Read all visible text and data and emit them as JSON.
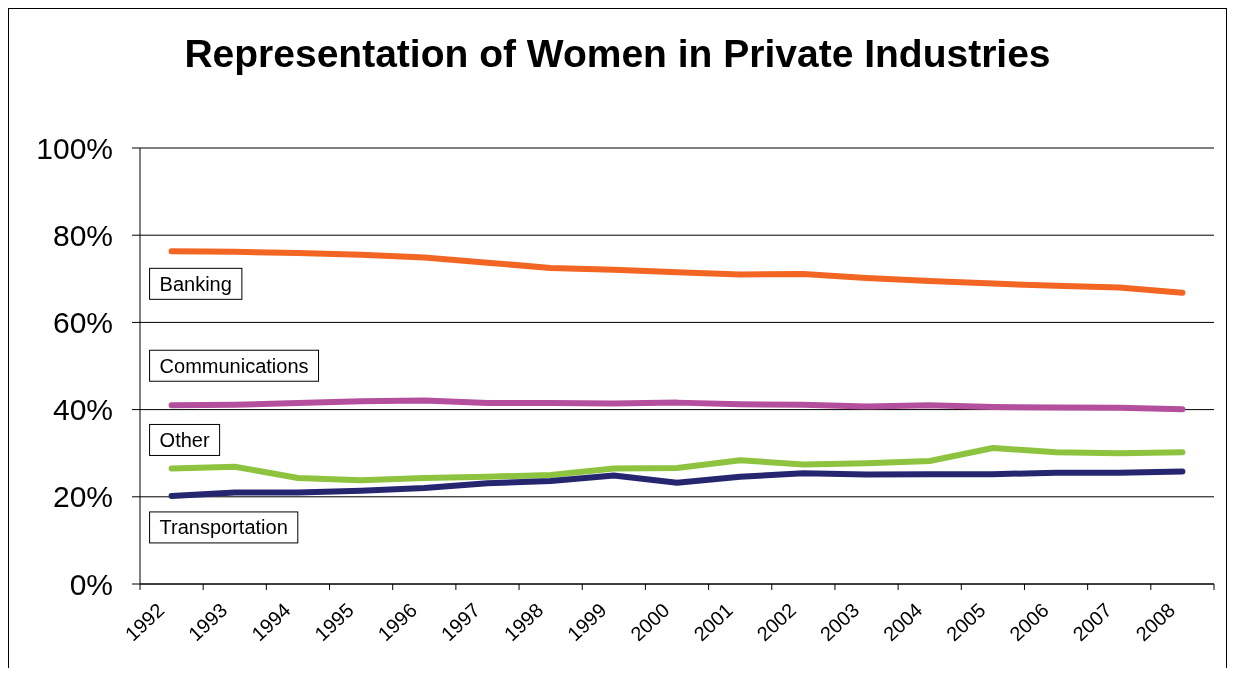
{
  "chart_data": {
    "type": "line",
    "title": "Representation of Women in Private Industries",
    "categories": [
      "1992",
      "1993",
      "1994",
      "1995",
      "1996",
      "1997",
      "1998",
      "1999",
      "2000",
      "2001",
      "2002",
      "2003",
      "2004",
      "2005",
      "2006",
      "2007",
      "2008"
    ],
    "series": [
      {
        "name": "Banking",
        "color": "#f26522",
        "values": [
          76.3,
          76.2,
          75.9,
          75.5,
          74.9,
          73.7,
          72.5,
          72.1,
          71.5,
          71.0,
          71.1,
          70.2,
          69.5,
          68.9,
          68.4,
          68.0,
          66.8
        ]
      },
      {
        "name": "Communications",
        "color": "#b44f9d",
        "values": [
          41.0,
          41.1,
          41.5,
          41.9,
          42.1,
          41.5,
          41.5,
          41.4,
          41.6,
          41.2,
          41.1,
          40.7,
          41.0,
          40.6,
          40.5,
          40.4,
          40.1
        ]
      },
      {
        "name": "Other",
        "color": "#8dc33e",
        "values": [
          26.5,
          26.9,
          24.3,
          23.8,
          24.3,
          24.6,
          25.0,
          26.5,
          26.6,
          28.4,
          27.4,
          27.7,
          28.2,
          31.2,
          30.2,
          30.0,
          30.2
        ]
      },
      {
        "name": "Transportation",
        "color": "#262670",
        "values": [
          20.2,
          21.0,
          21.0,
          21.4,
          22.0,
          23.1,
          23.6,
          24.9,
          23.2,
          24.6,
          25.4,
          25.1,
          25.2,
          25.2,
          25.5,
          25.5,
          25.8
        ]
      }
    ],
    "ylim": [
      0,
      100
    ],
    "yticks": [
      {
        "value": 0,
        "label": "0%"
      },
      {
        "value": 20,
        "label": "20%"
      },
      {
        "value": 40,
        "label": "40%"
      },
      {
        "value": 60,
        "label": "60%"
      },
      {
        "value": 80,
        "label": "80%"
      },
      {
        "value": 100,
        "label": "100%"
      }
    ],
    "grid": "y",
    "line_style": "solid"
  }
}
